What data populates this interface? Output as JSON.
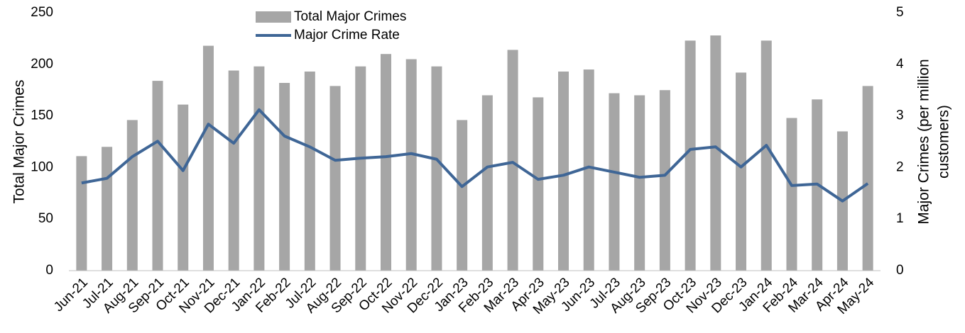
{
  "chart_data": {
    "type": "bar_line",
    "categories": [
      "Jun-21",
      "Jul-21",
      "Aug-21",
      "Sep-21",
      "Oct-21",
      "Nov-21",
      "Dec-21",
      "Jan-22",
      "Feb-22",
      "Jul-22",
      "Aug-22",
      "Sep-22",
      "Oct-22",
      "Nov-22",
      "Dec-22",
      "Jan-23",
      "Feb-23",
      "Mar-23",
      "Apr-23",
      "May-23",
      "Jun-23",
      "Jul-23",
      "Aug-23",
      "Sep-23",
      "Oct-23",
      "Nov-23",
      "Dec-23",
      "Jan-24",
      "Feb-24",
      "Mar-24",
      "Apr-24",
      "May-24"
    ],
    "series": [
      {
        "name": "Total Major Crimes",
        "type": "bar",
        "color": "#a6a6a6",
        "values": [
          111,
          120,
          146,
          184,
          161,
          218,
          194,
          198,
          182,
          193,
          179,
          198,
          210,
          205,
          198,
          146,
          170,
          214,
          168,
          193,
          195,
          172,
          170,
          175,
          223,
          228,
          192,
          223,
          148,
          166,
          135,
          179
        ]
      },
      {
        "name": "Major Crime Rate",
        "type": "line",
        "axis": "y2",
        "color": "#3f6696",
        "values": [
          1.7,
          1.79,
          2.21,
          2.51,
          1.94,
          2.84,
          2.47,
          3.12,
          2.61,
          2.4,
          2.14,
          2.18,
          2.21,
          2.27,
          2.16,
          1.63,
          2.01,
          2.1,
          1.77,
          1.85,
          2.01,
          1.91,
          1.81,
          1.85,
          2.35,
          2.4,
          2.01,
          2.43,
          1.65,
          1.68,
          1.35,
          1.69
        ]
      }
    ],
    "y_label": "Total Major Crimes",
    "y2_label": [
      "Major Crimes (per million",
      "customers)"
    ],
    "ylim": [
      0,
      250
    ],
    "yticks": [
      0,
      50,
      100,
      150,
      200,
      250
    ],
    "y2lim": [
      0,
      5
    ],
    "y2ticks": [
      0,
      1,
      2,
      3,
      4,
      5
    ],
    "legend": "top"
  }
}
